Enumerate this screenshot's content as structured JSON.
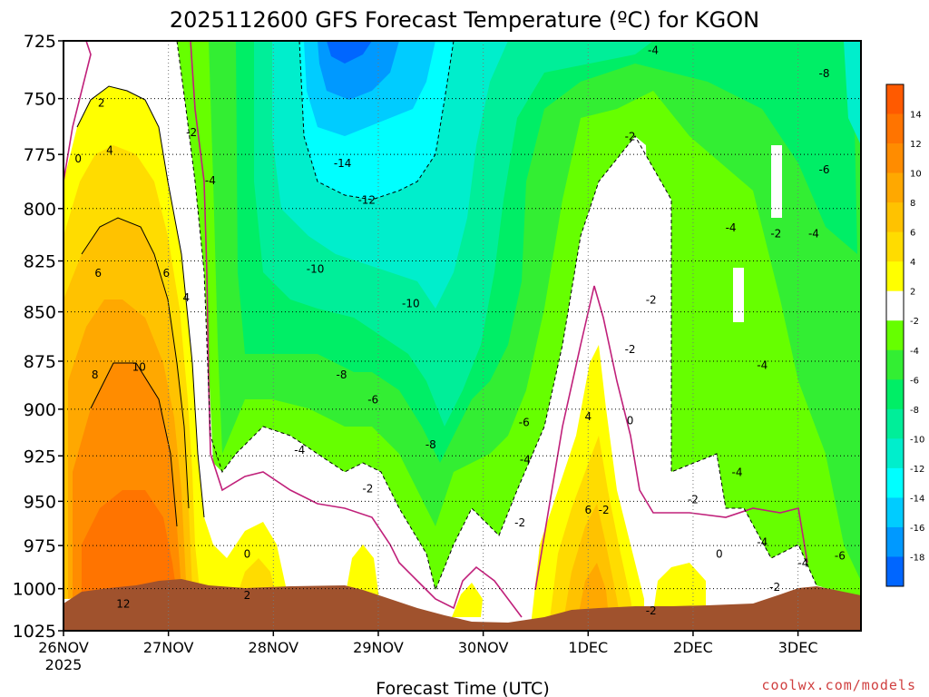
{
  "title": "2025112600 GFS Forecast Temperature (ºC) for KGON",
  "credit": "coolwx.com/models",
  "chart_data": {
    "type": "heatmap",
    "title": "2025112600 GFS Forecast Temperature (ºC) for KGON",
    "xlabel": "Forecast Time (UTC)",
    "ylabel": "",
    "x_ticks": [
      "26NOV",
      "27NOV",
      "28NOV",
      "29NOV",
      "30NOV",
      "1DEC",
      "2DEC",
      "3DEC"
    ],
    "x_year_label": "2025",
    "y_ticks": [
      725,
      750,
      775,
      800,
      825,
      850,
      875,
      900,
      925,
      950,
      975,
      1000,
      1025
    ],
    "ylim": [
      1025,
      725
    ],
    "y_scale": "log-pressure",
    "grid": true,
    "colorbar": {
      "labels": [
        14,
        12,
        10,
        8,
        6,
        4,
        2,
        -2,
        -4,
        -6,
        -8,
        -10,
        -12,
        -14,
        -16,
        -18
      ],
      "colors": [
        "#ff5a00",
        "#ff7400",
        "#ff8c00",
        "#ffa800",
        "#ffc200",
        "#ffdc00",
        "#ffff00",
        "#ffffff",
        "#66ff00",
        "#33ee33",
        "#00ee66",
        "#00ee99",
        "#00eecc",
        "#00ffff",
        "#00ccff",
        "#0099ff",
        "#0066ff"
      ]
    },
    "contour_labels": [
      {
        "text": "2",
        "x": 0.36,
        "p": 752
      },
      {
        "text": "0",
        "x": 0.14,
        "p": 777
      },
      {
        "text": "4",
        "x": 0.44,
        "p": 773
      },
      {
        "text": "6",
        "x": 0.33,
        "p": 831
      },
      {
        "text": "6",
        "x": 0.98,
        "p": 831
      },
      {
        "text": "4",
        "x": 1.17,
        "p": 843
      },
      {
        "text": "8",
        "x": 0.3,
        "p": 882
      },
      {
        "text": "10",
        "x": 0.72,
        "p": 878
      },
      {
        "text": "12",
        "x": 0.57,
        "p": 1009
      },
      {
        "text": "-2",
        "x": 1.22,
        "p": 765
      },
      {
        "text": "-4",
        "x": 1.4,
        "p": 787
      },
      {
        "text": "-14",
        "x": 2.66,
        "p": 779
      },
      {
        "text": "-12",
        "x": 2.89,
        "p": 796
      },
      {
        "text": "-10",
        "x": 2.4,
        "p": 829
      },
      {
        "text": "-10",
        "x": 3.31,
        "p": 846
      },
      {
        "text": "-8",
        "x": 2.65,
        "p": 882
      },
      {
        "text": "-6",
        "x": 2.95,
        "p": 895
      },
      {
        "text": "-4",
        "x": 2.25,
        "p": 922
      },
      {
        "text": "-2",
        "x": 2.9,
        "p": 943
      },
      {
        "text": "0",
        "x": 1.75,
        "p": 980
      },
      {
        "text": "2",
        "x": 1.75,
        "p": 1004
      },
      {
        "text": "-8",
        "x": 3.5,
        "p": 919
      },
      {
        "text": "-6",
        "x": 4.39,
        "p": 907
      },
      {
        "text": "-4",
        "x": 4.4,
        "p": 927
      },
      {
        "text": "-2",
        "x": 4.35,
        "p": 962
      },
      {
        "text": "4",
        "x": 5.0,
        "p": 904
      },
      {
        "text": "6",
        "x": 5.0,
        "p": 955
      },
      {
        "text": "-2",
        "x": 5.15,
        "p": 955
      },
      {
        "text": "0",
        "x": 5.4,
        "p": 906
      },
      {
        "text": "-2",
        "x": 5.4,
        "p": 869
      },
      {
        "text": "-2",
        "x": 5.6,
        "p": 844
      },
      {
        "text": "-2",
        "x": 5.4,
        "p": 767
      },
      {
        "text": "-4",
        "x": 5.62,
        "p": 729
      },
      {
        "text": "-4",
        "x": 6.36,
        "p": 809
      },
      {
        "text": "-2",
        "x": 6.79,
        "p": 812
      },
      {
        "text": "-4",
        "x": 7.15,
        "p": 812
      },
      {
        "text": "-8",
        "x": 7.25,
        "p": 739
      },
      {
        "text": "-6",
        "x": 7.25,
        "p": 782
      },
      {
        "text": "-4",
        "x": 6.66,
        "p": 877
      },
      {
        "text": "-4",
        "x": 6.42,
        "p": 934
      },
      {
        "text": "-2",
        "x": 6.0,
        "p": 949
      },
      {
        "text": "0",
        "x": 6.25,
        "p": 980
      },
      {
        "text": "-4",
        "x": 6.66,
        "p": 973
      },
      {
        "text": "-4",
        "x": 7.05,
        "p": 985
      },
      {
        "text": "-6",
        "x": 7.4,
        "p": 981
      },
      {
        "text": "-2",
        "x": 6.78,
        "p": 999
      },
      {
        "text": "-2",
        "x": 5.6,
        "p": 1013
      }
    ]
  }
}
